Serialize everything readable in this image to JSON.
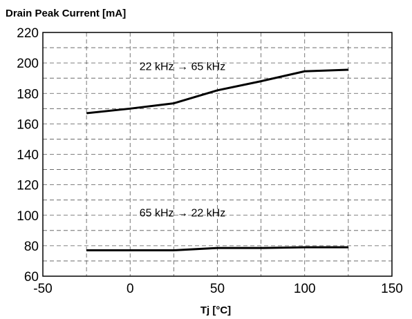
{
  "chart_data": {
    "type": "line",
    "title": "Drain Peak Current [mA]",
    "xlabel": "Tj [°C]",
    "ylabel": "",
    "xlim": [
      -50,
      150
    ],
    "ylim": [
      60,
      220
    ],
    "x_ticks": [
      -50,
      0,
      50,
      100,
      150
    ],
    "y_ticks": [
      60,
      80,
      100,
      120,
      140,
      160,
      180,
      200,
      220
    ],
    "x_tick_labels": [
      "-50",
      "0",
      "50",
      "100",
      "150"
    ],
    "y_tick_labels": [
      "60",
      "80",
      "100",
      "120",
      "140",
      "160",
      "180",
      "200",
      "220"
    ],
    "grid": true,
    "legend": "none",
    "series": [
      {
        "x": [
          -25,
          0,
          25,
          50,
          75,
          100,
          125
        ],
        "values": [
          167,
          170,
          173.5,
          182,
          188,
          194.5,
          195.5
        ]
      },
      {
        "x": [
          -25,
          0,
          25,
          50,
          75,
          100,
          125
        ],
        "values": [
          77,
          77,
          77,
          78.5,
          78.5,
          79,
          79
        ]
      }
    ],
    "annotations": [
      {
        "text": "22 kHz → 65 kHz",
        "x": 30,
        "y": 198
      },
      {
        "text": "65 kHz → 22 kHz",
        "x": 30,
        "y": 102
      }
    ],
    "line_color": "#000000"
  }
}
